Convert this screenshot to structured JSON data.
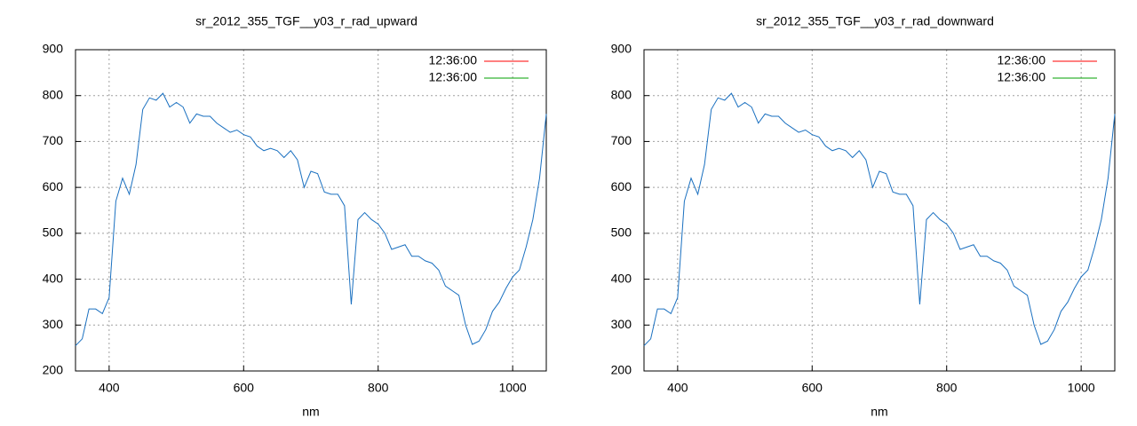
{
  "chart_data": [
    {
      "type": "line",
      "title": "sr_2012_355_TGF__y03_r_rad_upward",
      "x_label": "nm",
      "xlim": [
        350,
        1050
      ],
      "xticks": [
        400,
        600,
        800,
        1000
      ],
      "ylim": [
        200,
        900
      ],
      "yticks": [
        200,
        300,
        400,
        500,
        600,
        700,
        800,
        900
      ],
      "grid": true,
      "legend": "top-right",
      "x": [
        350,
        360,
        370,
        380,
        390,
        400,
        410,
        420,
        430,
        440,
        450,
        460,
        470,
        480,
        490,
        500,
        510,
        520,
        530,
        540,
        550,
        560,
        570,
        580,
        590,
        600,
        610,
        620,
        630,
        640,
        650,
        660,
        670,
        680,
        690,
        700,
        710,
        720,
        730,
        740,
        750,
        760,
        770,
        780,
        790,
        800,
        810,
        820,
        830,
        840,
        850,
        860,
        870,
        880,
        890,
        900,
        910,
        920,
        930,
        940,
        950,
        960,
        970,
        980,
        990,
        1000,
        1010,
        1020,
        1030,
        1040,
        1050
      ],
      "series": [
        {
          "name": "12:36:00",
          "color": "#ff0000"
        },
        {
          "name": "12:36:00",
          "color": "#00a000"
        },
        {
          "color": "#1a70c0",
          "values": [
            255,
            270,
            335,
            335,
            325,
            360,
            570,
            620,
            585,
            650,
            770,
            795,
            790,
            805,
            775,
            785,
            775,
            740,
            760,
            755,
            755,
            740,
            730,
            720,
            725,
            715,
            710,
            690,
            680,
            685,
            680,
            665,
            680,
            660,
            600,
            635,
            630,
            590,
            585,
            585,
            560,
            345,
            530,
            545,
            530,
            520,
            500,
            465,
            470,
            475,
            450,
            450,
            440,
            435,
            420,
            385,
            375,
            365,
            300,
            258,
            265,
            290,
            330,
            350,
            380,
            405,
            420,
            470,
            530,
            620,
            760
          ]
        }
      ]
    },
    {
      "type": "line",
      "title": "sr_2012_355_TGF__y03_r_rad_downward",
      "x_label": "nm",
      "xlim": [
        350,
        1050
      ],
      "xticks": [
        400,
        600,
        800,
        1000
      ],
      "ylim": [
        200,
        900
      ],
      "yticks": [
        200,
        300,
        400,
        500,
        600,
        700,
        800,
        900
      ],
      "grid": true,
      "legend": "top-right",
      "x": [
        350,
        360,
        370,
        380,
        390,
        400,
        410,
        420,
        430,
        440,
        450,
        460,
        470,
        480,
        490,
        500,
        510,
        520,
        530,
        540,
        550,
        560,
        570,
        580,
        590,
        600,
        610,
        620,
        630,
        640,
        650,
        660,
        670,
        680,
        690,
        700,
        710,
        720,
        730,
        740,
        750,
        760,
        770,
        780,
        790,
        800,
        810,
        820,
        830,
        840,
        850,
        860,
        870,
        880,
        890,
        900,
        910,
        920,
        930,
        940,
        950,
        960,
        970,
        980,
        990,
        1000,
        1010,
        1020,
        1030,
        1040,
        1050
      ],
      "series": [
        {
          "name": "12:36:00",
          "color": "#ff0000"
        },
        {
          "name": "12:36:00",
          "color": "#00a000"
        },
        {
          "color": "#1a70c0",
          "values": [
            255,
            270,
            335,
            335,
            325,
            360,
            570,
            620,
            585,
            650,
            770,
            795,
            790,
            805,
            775,
            785,
            775,
            740,
            760,
            755,
            755,
            740,
            730,
            720,
            725,
            715,
            710,
            690,
            680,
            685,
            680,
            665,
            680,
            660,
            600,
            635,
            630,
            590,
            585,
            585,
            560,
            345,
            530,
            545,
            530,
            520,
            500,
            465,
            470,
            475,
            450,
            450,
            440,
            435,
            420,
            385,
            375,
            365,
            300,
            258,
            265,
            290,
            330,
            350,
            380,
            405,
            420,
            470,
            530,
            620,
            760
          ]
        }
      ]
    }
  ]
}
